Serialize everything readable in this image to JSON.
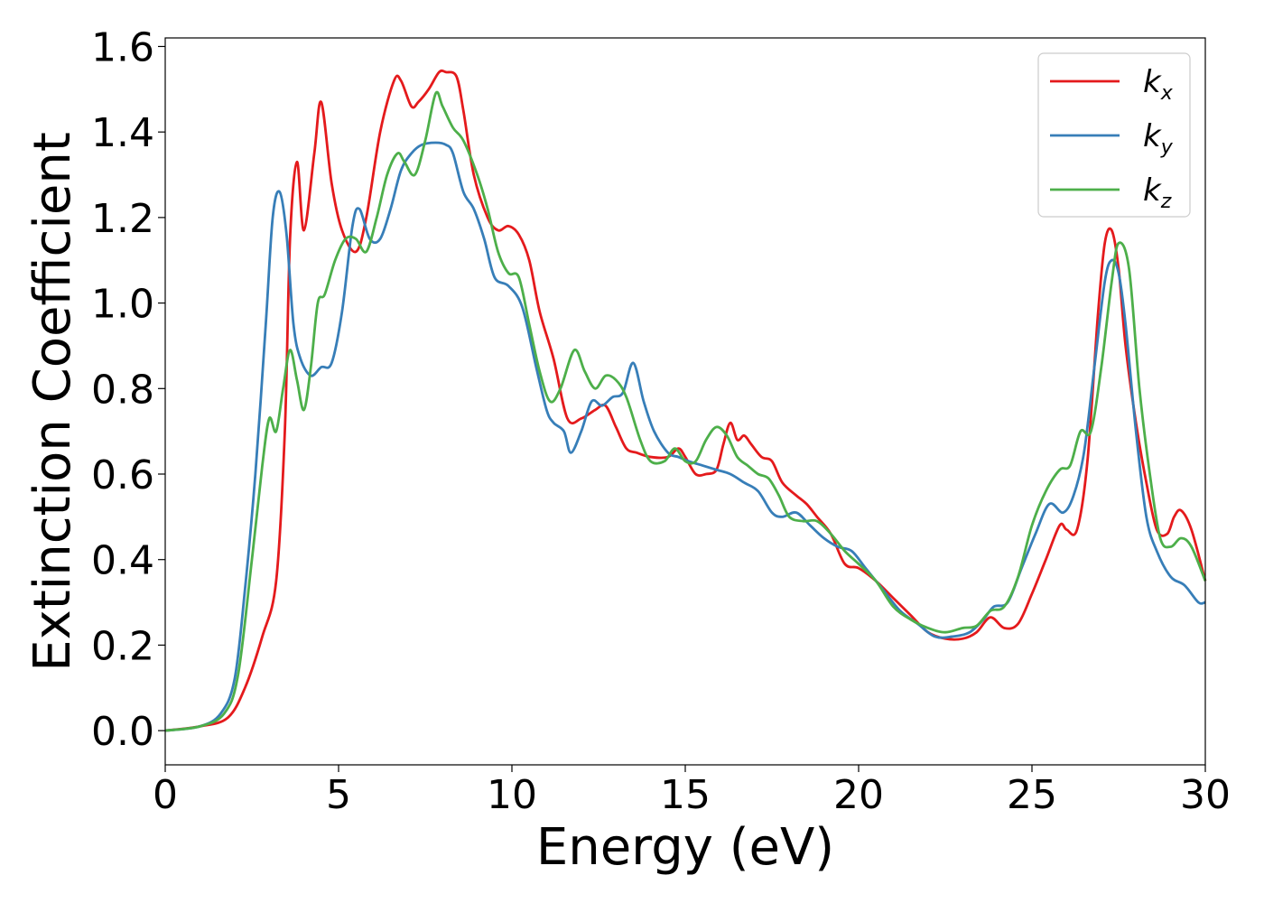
{
  "chart_data": {
    "type": "line",
    "title": "",
    "xlabel": "Energy (eV)",
    "ylabel": "Extinction Coefficient",
    "xlim": [
      0,
      30
    ],
    "ylim": [
      -0.08,
      1.62
    ],
    "xticks": [
      0,
      5,
      10,
      15,
      20,
      25,
      30
    ],
    "xtick_labels": [
      "0",
      "5",
      "10",
      "15",
      "20",
      "25",
      "30"
    ],
    "yticks": [
      0.0,
      0.2,
      0.4,
      0.6,
      0.8,
      1.0,
      1.2,
      1.4,
      1.6
    ],
    "ytick_labels": [
      "0.0",
      "0.2",
      "0.4",
      "0.6",
      "0.8",
      "1.0",
      "1.2",
      "1.4",
      "1.6"
    ],
    "grid": false,
    "legend_position": "upper-right",
    "series": [
      {
        "name": "k_x",
        "label_main": "k",
        "label_sub": "x",
        "color": "#e41a1c",
        "x": [
          0,
          1.0,
          1.8,
          2.3,
          2.8,
          3.2,
          3.45,
          3.6,
          3.8,
          4.0,
          4.3,
          4.5,
          4.8,
          5.1,
          5.5,
          5.8,
          6.2,
          6.6,
          6.8,
          7.1,
          7.3,
          7.6,
          7.9,
          8.1,
          8.4,
          8.6,
          8.9,
          9.3,
          9.6,
          9.9,
          10.2,
          10.5,
          10.8,
          11.2,
          11.6,
          12.0,
          12.4,
          12.7,
          13.0,
          13.3,
          13.6,
          14.0,
          14.5,
          14.8,
          15.0,
          15.3,
          15.6,
          15.9,
          16.1,
          16.3,
          16.5,
          16.7,
          16.9,
          17.2,
          17.5,
          17.8,
          18.2,
          18.5,
          18.8,
          19.2,
          19.6,
          20.0,
          20.5,
          21.0,
          21.5,
          22.0,
          22.5,
          23.0,
          23.4,
          23.8,
          24.2,
          24.6,
          25.0,
          25.4,
          25.8,
          26.0,
          26.3,
          26.6,
          26.9,
          27.1,
          27.3,
          27.5,
          27.7,
          28.0,
          28.3,
          28.6,
          28.9,
          29.1,
          29.3,
          29.6,
          30.0
        ],
        "y": [
          0.0,
          0.01,
          0.03,
          0.1,
          0.22,
          0.35,
          0.7,
          1.15,
          1.33,
          1.17,
          1.35,
          1.47,
          1.28,
          1.17,
          1.12,
          1.2,
          1.4,
          1.52,
          1.52,
          1.46,
          1.47,
          1.5,
          1.54,
          1.54,
          1.53,
          1.45,
          1.3,
          1.2,
          1.17,
          1.18,
          1.16,
          1.1,
          0.98,
          0.87,
          0.73,
          0.73,
          0.75,
          0.76,
          0.71,
          0.66,
          0.65,
          0.64,
          0.64,
          0.66,
          0.64,
          0.6,
          0.6,
          0.61,
          0.67,
          0.72,
          0.68,
          0.69,
          0.67,
          0.64,
          0.63,
          0.58,
          0.55,
          0.53,
          0.5,
          0.46,
          0.39,
          0.38,
          0.35,
          0.31,
          0.27,
          0.23,
          0.215,
          0.215,
          0.23,
          0.265,
          0.24,
          0.25,
          0.32,
          0.4,
          0.48,
          0.47,
          0.47,
          0.63,
          0.97,
          1.14,
          1.17,
          1.08,
          0.9,
          0.72,
          0.58,
          0.47,
          0.46,
          0.5,
          0.515,
          0.47,
          0.35
        ]
      },
      {
        "name": "k_y",
        "label_main": "k",
        "label_sub": "y",
        "color": "#377eb8",
        "x": [
          0,
          1.0,
          1.6,
          2.0,
          2.3,
          2.6,
          2.9,
          3.1,
          3.3,
          3.5,
          3.7,
          3.9,
          4.2,
          4.5,
          4.8,
          5.1,
          5.4,
          5.6,
          5.9,
          6.2,
          6.5,
          6.8,
          7.1,
          7.4,
          7.8,
          8.1,
          8.3,
          8.6,
          8.9,
          9.2,
          9.5,
          9.9,
          10.3,
          10.7,
          11.0,
          11.2,
          11.5,
          11.7,
          12.0,
          12.3,
          12.6,
          12.9,
          13.2,
          13.5,
          13.8,
          14.1,
          14.5,
          14.8,
          15.1,
          15.5,
          15.9,
          16.3,
          16.7,
          17.1,
          17.5,
          17.8,
          18.2,
          18.6,
          19.0,
          19.4,
          19.8,
          20.2,
          20.7,
          21.2,
          21.7,
          22.2,
          22.7,
          23.2,
          23.6,
          23.9,
          24.3,
          24.7,
          25.1,
          25.5,
          25.9,
          26.2,
          26.5,
          26.8,
          27.1,
          27.3,
          27.5,
          27.7,
          28.0,
          28.3,
          28.6,
          29.0,
          29.4,
          29.8,
          30.0
        ],
        "y": [
          0.0,
          0.01,
          0.04,
          0.12,
          0.33,
          0.6,
          0.95,
          1.2,
          1.26,
          1.16,
          0.95,
          0.87,
          0.83,
          0.85,
          0.86,
          0.98,
          1.18,
          1.22,
          1.15,
          1.15,
          1.22,
          1.31,
          1.35,
          1.37,
          1.375,
          1.37,
          1.35,
          1.26,
          1.22,
          1.15,
          1.06,
          1.04,
          0.99,
          0.85,
          0.75,
          0.72,
          0.7,
          0.65,
          0.7,
          0.77,
          0.76,
          0.78,
          0.79,
          0.86,
          0.77,
          0.7,
          0.65,
          0.64,
          0.63,
          0.62,
          0.61,
          0.6,
          0.58,
          0.56,
          0.51,
          0.5,
          0.51,
          0.48,
          0.45,
          0.43,
          0.42,
          0.38,
          0.33,
          0.28,
          0.25,
          0.22,
          0.22,
          0.23,
          0.26,
          0.29,
          0.3,
          0.38,
          0.46,
          0.53,
          0.51,
          0.55,
          0.65,
          0.85,
          1.05,
          1.1,
          1.07,
          0.95,
          0.7,
          0.5,
          0.42,
          0.36,
          0.34,
          0.3,
          0.3
        ]
      },
      {
        "name": "k_z",
        "label_main": "k",
        "label_sub": "z",
        "color": "#4daf4a",
        "x": [
          0,
          1.0,
          1.7,
          2.1,
          2.5,
          2.8,
          3.0,
          3.2,
          3.4,
          3.6,
          3.8,
          4.0,
          4.2,
          4.4,
          4.6,
          4.9,
          5.2,
          5.5,
          5.8,
          6.1,
          6.4,
          6.7,
          6.9,
          7.2,
          7.5,
          7.8,
          8.0,
          8.3,
          8.6,
          9.0,
          9.3,
          9.6,
          9.9,
          10.2,
          10.5,
          10.8,
          11.1,
          11.4,
          11.8,
          12.1,
          12.4,
          12.7,
          13.0,
          13.3,
          13.7,
          14.0,
          14.4,
          14.7,
          15.0,
          15.3,
          15.6,
          15.9,
          16.2,
          16.5,
          16.8,
          17.1,
          17.4,
          17.7,
          18.0,
          18.4,
          18.8,
          19.2,
          19.6,
          20.0,
          20.5,
          21.0,
          21.5,
          22.0,
          22.5,
          23.0,
          23.4,
          23.8,
          24.2,
          24.6,
          25.0,
          25.4,
          25.8,
          26.1,
          26.4,
          26.7,
          27.0,
          27.3,
          27.5,
          27.8,
          28.1,
          28.4,
          28.7,
          29.0,
          29.3,
          29.6,
          30.0
        ],
        "y": [
          0.0,
          0.01,
          0.04,
          0.13,
          0.4,
          0.62,
          0.73,
          0.7,
          0.8,
          0.89,
          0.82,
          0.75,
          0.85,
          1.0,
          1.02,
          1.1,
          1.15,
          1.15,
          1.12,
          1.2,
          1.3,
          1.35,
          1.33,
          1.3,
          1.38,
          1.49,
          1.46,
          1.41,
          1.38,
          1.3,
          1.22,
          1.12,
          1.07,
          1.06,
          0.95,
          0.84,
          0.77,
          0.8,
          0.89,
          0.84,
          0.8,
          0.83,
          0.82,
          0.78,
          0.68,
          0.63,
          0.63,
          0.66,
          0.63,
          0.63,
          0.68,
          0.71,
          0.69,
          0.64,
          0.62,
          0.6,
          0.59,
          0.55,
          0.5,
          0.49,
          0.49,
          0.46,
          0.42,
          0.39,
          0.35,
          0.29,
          0.26,
          0.24,
          0.23,
          0.24,
          0.245,
          0.28,
          0.29,
          0.36,
          0.48,
          0.56,
          0.61,
          0.62,
          0.7,
          0.7,
          0.85,
          1.05,
          1.14,
          1.08,
          0.8,
          0.6,
          0.45,
          0.43,
          0.45,
          0.43,
          0.35
        ]
      }
    ]
  }
}
